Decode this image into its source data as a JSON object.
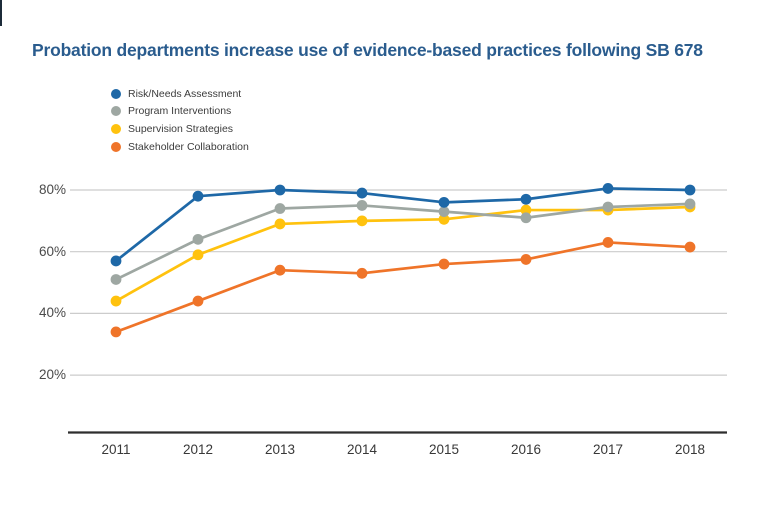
{
  "page": {
    "background": "#ffffff",
    "corner_mark_color": "#1c2b39"
  },
  "title": {
    "text": "Probation departments increase use of evidence-based practices following SB 678",
    "color": "#2a5c8e"
  },
  "chart_data": {
    "type": "line",
    "title": "Probation departments increase use of evidence-based practices following SB 678",
    "x": [
      "2011",
      "2012",
      "2013",
      "2014",
      "2015",
      "2016",
      "2017",
      "2018"
    ],
    "series": [
      {
        "name": "Risk/Needs Assessment",
        "color": "#1e68a7",
        "values": [
          57,
          78,
          80,
          79,
          76,
          77,
          80.5,
          80
        ]
      },
      {
        "name": "Program Interventions",
        "color": "#9ea7a2",
        "values": [
          51,
          64,
          74,
          75,
          73,
          71,
          74.5,
          75.5
        ]
      },
      {
        "name": "Supervision Strategies",
        "color": "#ffc20e",
        "values": [
          44,
          59,
          69,
          70,
          70.5,
          73.5,
          73.5,
          74.5
        ]
      },
      {
        "name": "Stakeholder Collaboration",
        "color": "#ef7429",
        "values": [
          34,
          44,
          54,
          53,
          56,
          57.5,
          63,
          61.5
        ]
      }
    ],
    "y_ticks": [
      80,
      60,
      40,
      20
    ],
    "y_tick_labels": [
      "80%",
      "60%",
      "40%",
      "20%"
    ],
    "ylim": [
      0,
      85
    ],
    "xlabel": "",
    "ylabel": "",
    "grid_on": true,
    "grid_color": "#cccccc",
    "axis_color": "#2e2e2e",
    "legend_position": "top-left"
  }
}
